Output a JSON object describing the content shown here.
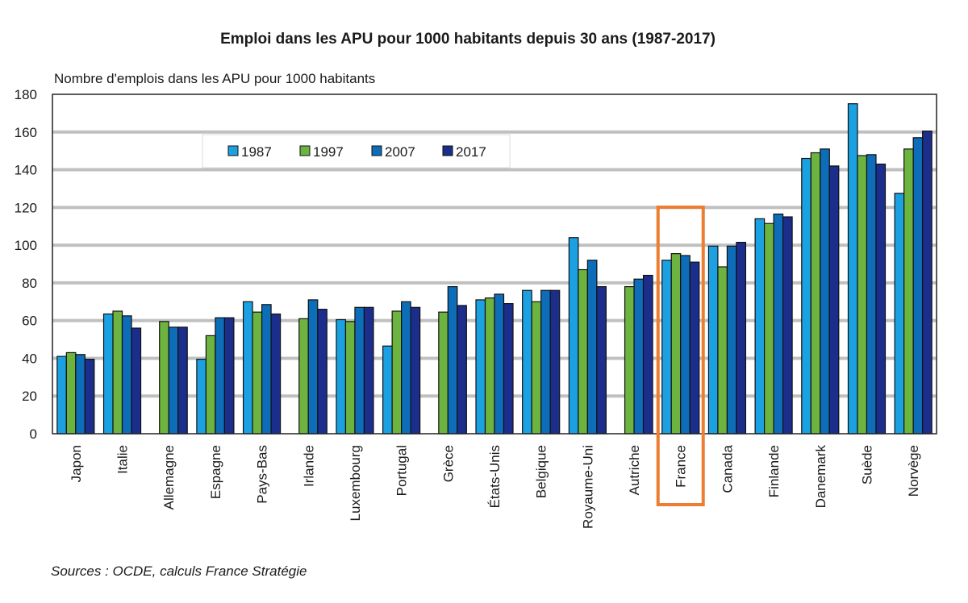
{
  "chart_data": {
    "type": "bar",
    "title": "Emploi dans les APU pour 1000 habitants depuis 30 ans (1987-2017)",
    "ylabel": "Nombre d'emplois dans les APU pour 1000 habitants",
    "xlabel": "",
    "ylim": [
      0,
      180
    ],
    "yticks": [
      0,
      20,
      40,
      60,
      80,
      100,
      120,
      140,
      160,
      180
    ],
    "grid": true,
    "legend_position": "top-left-inside",
    "source": "Sources : OCDE, calculs France Stratégie",
    "highlight": "France",
    "highlight_color": "#ED7D31",
    "categories": [
      "Japon",
      "Italie",
      "Allemagne",
      "Espagne",
      "Pays-Bas",
      "Irlande",
      "Luxembourg",
      "Portugal",
      "Grèce",
      "États-Unis",
      "Belgique",
      "Royaume-Uni",
      "Autriche",
      "France",
      "Canada",
      "Finlande",
      "Danemark",
      "Suède",
      "Norvège"
    ],
    "series": [
      {
        "name": "1987",
        "color": "#1BA1E2",
        "values": [
          41,
          63.5,
          null,
          39.5,
          70,
          null,
          60.5,
          46.5,
          null,
          71,
          76,
          104,
          null,
          92,
          99.5,
          114,
          146,
          175,
          127.5
        ]
      },
      {
        "name": "1997",
        "color": "#6DB33F",
        "values": [
          43,
          65,
          59.5,
          52,
          64.5,
          61,
          59.5,
          65,
          64.5,
          72,
          70,
          87,
          78,
          95.5,
          88.5,
          111.5,
          149,
          147.5,
          151
        ]
      },
      {
        "name": "2007",
        "color": "#0E6DB8",
        "values": [
          42,
          62.5,
          56.5,
          61.5,
          68.5,
          71,
          67,
          70,
          78,
          74,
          76,
          92,
          82,
          94.5,
          99.5,
          116.5,
          151,
          148,
          157
        ]
      },
      {
        "name": "2017",
        "color": "#1C2E8C",
        "values": [
          39.5,
          56,
          56.5,
          61.5,
          63.5,
          66,
          67,
          67,
          68,
          69,
          76,
          78,
          84,
          91,
          101.5,
          115,
          142,
          143,
          160.5
        ]
      }
    ]
  }
}
